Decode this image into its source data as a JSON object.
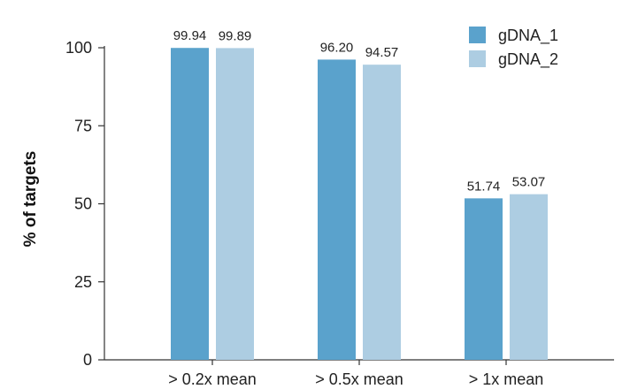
{
  "chart_data": {
    "type": "bar",
    "title": "",
    "xlabel": "",
    "ylabel": "% of targets",
    "ylim": [
      0,
      100
    ],
    "yticks": [
      0,
      25,
      50,
      75,
      100
    ],
    "categories": [
      "> 0.2x mean",
      "> 0.5x mean",
      "> 1x mean"
    ],
    "series": [
      {
        "name": "gDNA_1",
        "color": "#5aa2cc",
        "values": [
          99.94,
          96.2,
          51.74
        ],
        "labels": [
          "99.94",
          "96.20",
          "51.74"
        ]
      },
      {
        "name": "gDNA_2",
        "color": "#adcde2",
        "values": [
          99.89,
          94.57,
          53.07
        ],
        "labels": [
          "99.89",
          "94.57",
          "53.07"
        ]
      }
    ],
    "grid": false,
    "legend_position": "top-right",
    "data_labels": true
  }
}
